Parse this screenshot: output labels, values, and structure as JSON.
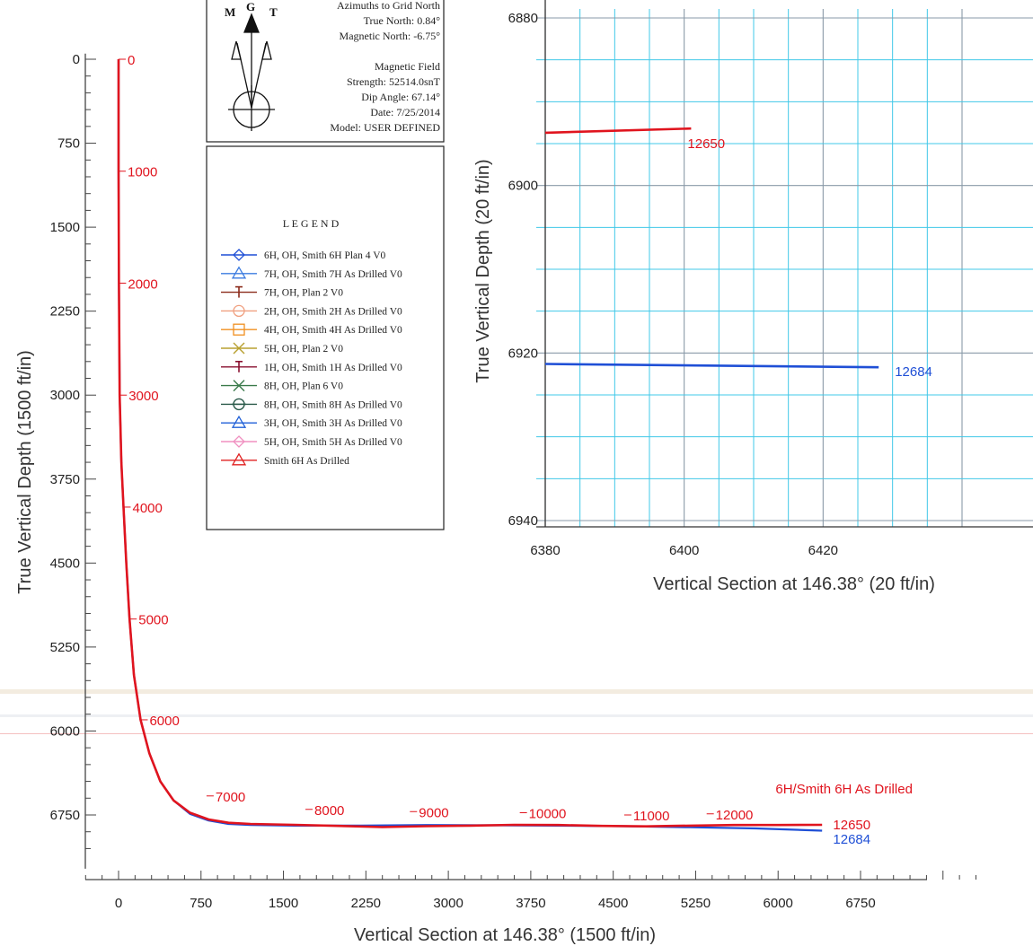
{
  "north_box": {
    "compass_letters": [
      "M",
      "G",
      "T"
    ],
    "lines": [
      "Azimuths to Grid North",
      "True North: 0.84°",
      "Magnetic North: -6.75°",
      "",
      "Magnetic Field",
      "Strength: 52514.0snT",
      "Dip Angle: 67.14°",
      "Date: 7/25/2014",
      "Model: USER DEFINED"
    ]
  },
  "legend": {
    "title": "L E G E N D",
    "entries": [
      {
        "label": "6H, OH, Smith 6H Plan 4 V0",
        "color": "#1f4fd6",
        "marker": "diamond"
      },
      {
        "label": "7H, OH, Smith 7H As Drilled V0",
        "color": "#3b7be0",
        "marker": "triangle"
      },
      {
        "label": "7H, OH, Plan 2 V0",
        "color": "#8b2a1a",
        "marker": "tbar"
      },
      {
        "label": "2H, OH, Smith 2H As Drilled V0",
        "color": "#f0a080",
        "marker": "circle"
      },
      {
        "label": "4H, OH, Smith 4H As Drilled V0",
        "color": "#f09020",
        "marker": "square"
      },
      {
        "label": "5H, OH, Plan 2 V0",
        "color": "#b8a030",
        "marker": "x"
      },
      {
        "label": "1H, OH, Smith 1H As Drilled V0",
        "color": "#8a1030",
        "marker": "tbar"
      },
      {
        "label": "8H, OH, Plan 6 V0",
        "color": "#3a7a4a",
        "marker": "x"
      },
      {
        "label": "8H, OH, Smith 8H As Drilled V0",
        "color": "#2a5a4a",
        "marker": "circlecross"
      },
      {
        "label": "3H, OH, Smith 3H As Drilled V0",
        "color": "#2060d8",
        "marker": "triangle"
      },
      {
        "label": "5H, OH, Smith 5H As Drilled V0",
        "color": "#f090c0",
        "marker": "diamond"
      },
      {
        "label": "Smith 6H As Drilled",
        "color": "#e02020",
        "marker": "triangle"
      }
    ]
  },
  "colors": {
    "drilled": "#e0141e",
    "plan": "#1f4fd6",
    "grid": "#40c8e8",
    "axis": "#444444",
    "md_label": "#e0141e",
    "plan_label": "#1f4fd6"
  },
  "chart_data": [
    {
      "type": "line",
      "title": "",
      "xlabel": "Vertical Section at 146.38° (1500 ft/in)",
      "ylabel": "True Vertical Depth (1500 ft/in)",
      "xlim": [
        -500,
        7500
      ],
      "ylim": [
        7300,
        -60
      ],
      "y_inverted": true,
      "xticks": [
        0,
        750,
        1500,
        2250,
        3000,
        3750,
        4500,
        5250,
        6000,
        6750
      ],
      "yticks": [
        0,
        750,
        1500,
        2250,
        3000,
        3750,
        4500,
        5250,
        6000,
        6750
      ],
      "grid": false,
      "series": [
        {
          "name": "",
          "color_key": "plan",
          "x": [
            0,
            0,
            3,
            10,
            25,
            45,
            70,
            100,
            140,
            200,
            280,
            380,
            500,
            650,
            820,
            1000,
            1200,
            1600,
            2200,
            2800,
            3400,
            4000,
            4600,
            5200,
            5800,
            6400
          ],
          "y": [
            0,
            1000,
            2000,
            3000,
            3600,
            4000,
            4500,
            5000,
            5500,
            5900,
            6200,
            6450,
            6620,
            6740,
            6800,
            6830,
            6840,
            6845,
            6845,
            6840,
            6842,
            6845,
            6850,
            6860,
            6870,
            6890
          ]
        },
        {
          "name": "",
          "color_key": "drilled",
          "x": [
            0,
            0,
            3,
            10,
            25,
            45,
            70,
            100,
            140,
            200,
            280,
            380,
            500,
            650,
            820,
            1000,
            1200,
            1600,
            2000,
            2400,
            2800,
            3200,
            3600,
            4000,
            4400,
            4800,
            5200,
            5600,
            6000,
            6400
          ],
          "y": [
            0,
            1000,
            2000,
            3000,
            3600,
            4000,
            4500,
            5000,
            5500,
            5900,
            6200,
            6450,
            6620,
            6730,
            6790,
            6820,
            6830,
            6838,
            6848,
            6858,
            6850,
            6845,
            6838,
            6840,
            6848,
            6852,
            6845,
            6840,
            6840,
            6838
          ]
        }
      ],
      "md_labels": [
        {
          "text": "0",
          "x": 0,
          "y": 0
        },
        {
          "text": "1000",
          "x": 0,
          "y": 1000
        },
        {
          "text": "2000",
          "x": 3,
          "y": 2000
        },
        {
          "text": "3000",
          "x": 10,
          "y": 3000
        },
        {
          "text": "4000",
          "x": 45,
          "y": 4000
        },
        {
          "text": "5000",
          "x": 100,
          "y": 5000
        },
        {
          "text": "6000",
          "x": 200,
          "y": 5900
        },
        {
          "text": "7000",
          "x": 800,
          "y": 6580
        },
        {
          "text": "8000",
          "x": 1700,
          "y": 6700
        },
        {
          "text": "9000",
          "x": 2650,
          "y": 6720
        },
        {
          "text": "10000",
          "x": 3650,
          "y": 6730
        },
        {
          "text": "11000",
          "x": 4600,
          "y": 6750
        },
        {
          "text": "12000",
          "x": 5350,
          "y": 6740
        }
      ],
      "annotations": [
        {
          "text": "6H/Smith 6H As Drilled",
          "x": 6600,
          "y": 6510,
          "color_key": "drilled",
          "anchor": "middle"
        },
        {
          "text": "12650",
          "x": 6500,
          "y": 6830,
          "color_key": "drilled",
          "anchor": "start"
        },
        {
          "text": "12684",
          "x": 6500,
          "y": 6960,
          "color_key": "plan",
          "anchor": "start"
        }
      ]
    },
    {
      "type": "line",
      "title": "",
      "xlabel": "Vertical Section at 146.38° (20 ft/in)",
      "ylabel": "True Vertical Depth (20 ft/in)",
      "xlim": [
        6380,
        6434
      ],
      "ylim": [
        6940,
        6880
      ],
      "y_inverted": true,
      "xticks": [
        6380,
        6400,
        6420
      ],
      "yticks": [
        6880,
        6900,
        6920,
        6940
      ],
      "grid": true,
      "series": [
        {
          "name": "",
          "color_key": "drilled",
          "x": [
            6380,
            6401
          ],
          "y": [
            6893.7,
            6893.2
          ],
          "end_label": "12650"
        },
        {
          "name": "",
          "color_key": "plan",
          "x": [
            6380,
            6428
          ],
          "y": [
            6921.3,
            6921.7
          ],
          "end_label": "12684"
        }
      ]
    }
  ]
}
